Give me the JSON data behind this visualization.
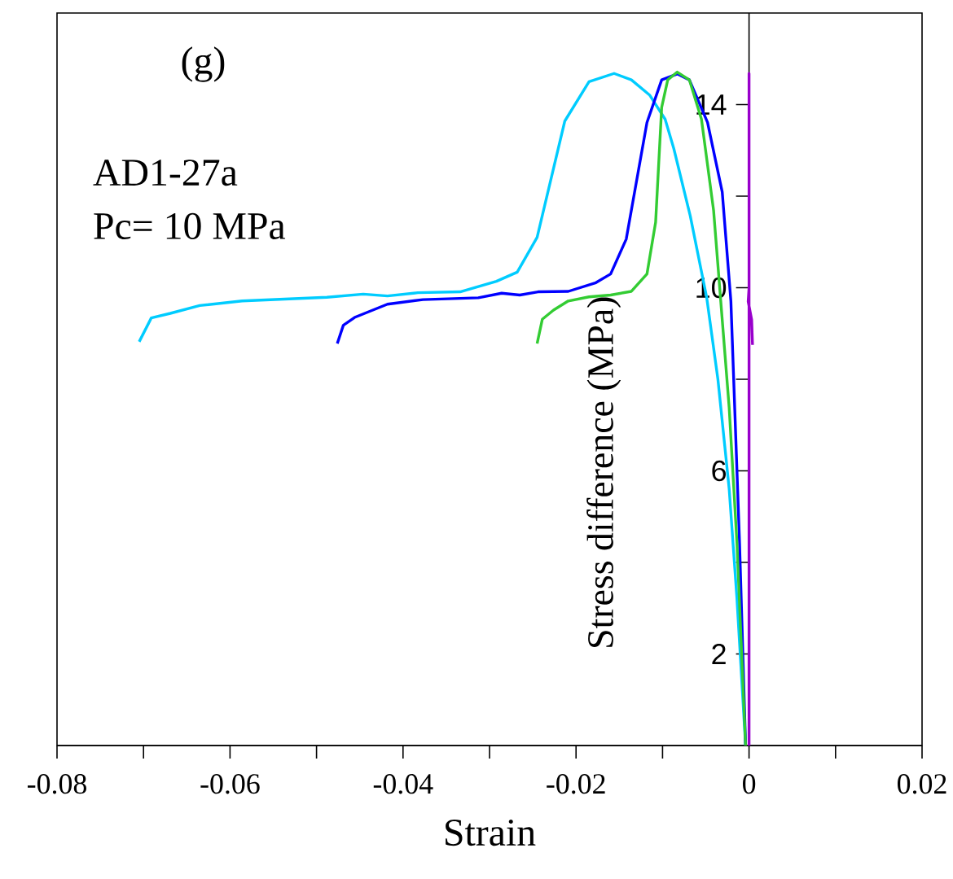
{
  "chart_data": {
    "type": "line",
    "xlabel": "Strain",
    "ylabel": "Stress difference (MPa)",
    "annotations": [
      "(g)",
      "AD1-27a",
      "Pc= 10 MPa"
    ],
    "xlim": [
      -0.08,
      0.02
    ],
    "ylim": [
      0,
      16
    ],
    "xticks": [
      -0.08,
      {
        "value": -0.07,
        "label": null
      },
      -0.06,
      {
        "value": -0.05,
        "label": null
      },
      -0.04,
      {
        "value": -0.03,
        "label": null
      },
      -0.02,
      {
        "value": -0.01,
        "label": null
      },
      0,
      {
        "value": 0.01,
        "label": null
      },
      0.02
    ],
    "yticks": [
      2,
      {
        "value": 4,
        "label": null
      },
      6,
      {
        "value": 8,
        "label": null
      },
      10,
      {
        "value": 12,
        "label": null
      },
      14
    ],
    "series": [
      {
        "color": "#00ccff",
        "x": [
          -0.0705,
          -0.0691,
          -0.0669,
          -0.0635,
          -0.0586,
          -0.0488,
          -0.0446,
          -0.0418,
          -0.0383,
          -0.0334,
          -0.0292,
          -0.0268,
          -0.0245,
          -0.0213,
          -0.0185,
          -0.0156,
          -0.0136,
          -0.0115,
          -0.0097,
          -0.0087,
          -0.0068,
          -0.0049,
          -0.0036,
          -0.0023,
          -0.0014,
          -0.0004
        ],
        "values": [
          8.82,
          9.34,
          9.44,
          9.61,
          9.71,
          9.79,
          9.86,
          9.82,
          9.89,
          9.91,
          10.14,
          10.34,
          11.1,
          13.64,
          14.5,
          14.68,
          14.54,
          14.21,
          13.68,
          13.04,
          11.57,
          9.79,
          8.0,
          5.61,
          3.21,
          0
        ]
      },
      {
        "color": "#0000ff",
        "x": [
          -0.0476,
          -0.0469,
          -0.0456,
          -0.0418,
          -0.0377,
          -0.0313,
          -0.0286,
          -0.0265,
          -0.0244,
          -0.0209,
          -0.0177,
          -0.016,
          -0.0142,
          -0.0118,
          -0.0101,
          -0.0083,
          -0.0069,
          -0.0048,
          -0.0031,
          -0.0021,
          -0.0011,
          -0.0004
        ],
        "values": [
          8.78,
          9.18,
          9.35,
          9.64,
          9.74,
          9.78,
          9.88,
          9.84,
          9.91,
          9.92,
          10.11,
          10.3,
          11.06,
          13.61,
          14.54,
          14.67,
          14.54,
          13.61,
          12.09,
          9.71,
          4.43,
          0
        ]
      },
      {
        "color": "#33cc33",
        "x": [
          -0.0245,
          -0.0239,
          -0.0226,
          -0.0209,
          -0.0185,
          -0.016,
          -0.0136,
          -0.0118,
          -0.0108,
          -0.0101,
          -0.0094,
          -0.0083,
          -0.0069,
          -0.0055,
          -0.0041,
          -0.0023,
          -0.0014,
          -0.0004
        ],
        "values": [
          8.78,
          9.31,
          9.51,
          9.71,
          9.8,
          9.84,
          9.92,
          10.3,
          11.43,
          13.94,
          14.54,
          14.71,
          14.54,
          13.68,
          11.69,
          7.39,
          4.43,
          0
        ]
      },
      {
        "color": "#9900cc",
        "x": [
          0,
          0,
          0,
          -0.0001,
          0.0003,
          0.0004
        ],
        "values": [
          0,
          14.68,
          10.0,
          9.7,
          9.3,
          8.75
        ]
      }
    ]
  }
}
